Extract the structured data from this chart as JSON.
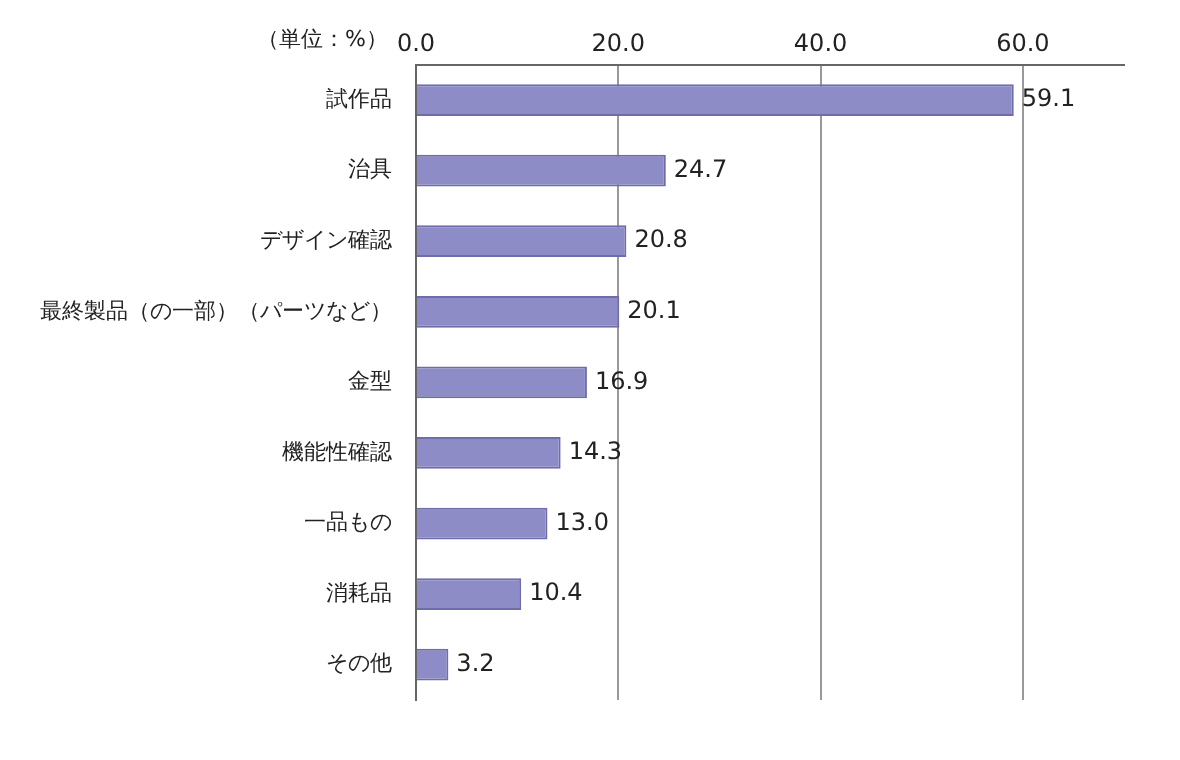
{
  "chart_data": {
    "type": "bar",
    "orientation": "horizontal",
    "xlabel": "（単位：%）",
    "categories": [
      "試作品",
      "治具",
      "デザイン確認",
      "最終製品（の一部）（パーツなど）",
      "金型",
      "機能性確認",
      "一品もの",
      "消耗品",
      "その他"
    ],
    "values": [
      59.1,
      24.7,
      20.8,
      20.1,
      16.9,
      14.3,
      13.0,
      10.4,
      3.2
    ],
    "value_labels": [
      "59.1",
      "24.7",
      "20.8",
      "20.1",
      "16.9",
      "14.3",
      "13.0",
      "10.4",
      "3.2"
    ],
    "color": "#8e8cc6",
    "xlim": [
      0,
      70
    ],
    "xticks": [
      {
        "value": 0,
        "label": "0.0"
      },
      {
        "value": 20,
        "label": "20.0"
      },
      {
        "value": 40,
        "label": "40.0"
      },
      {
        "value": 60,
        "label": "60.0"
      }
    ],
    "grid": "x",
    "data_labels": true,
    "legend": false
  }
}
